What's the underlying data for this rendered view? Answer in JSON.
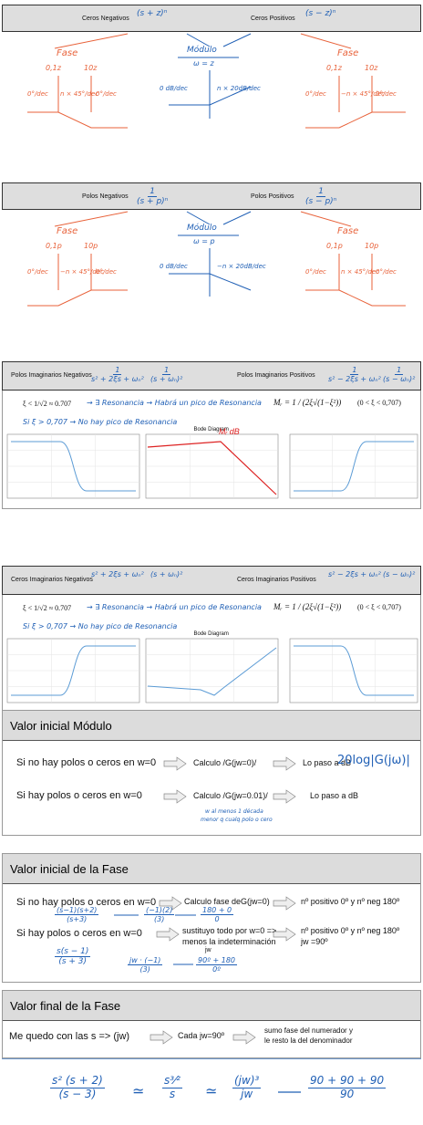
{
  "real_sections": [
    {
      "left_label": "Ceros Negativos",
      "left_expr": "(s + z)ⁿ",
      "right_label": "Ceros Positivos",
      "right_expr": "(s − z)ⁿ",
      "left_title": "Fase",
      "left_freqs": [
        "0,1z",
        "10z"
      ],
      "left_slopes": [
        "0°/dec",
        "n × 45°/dec",
        "0°/dec"
      ],
      "mid_title": "Módulo",
      "mid_freq": "ω = z",
      "mid_slopes": [
        "0 dB/dec",
        "n × 20dB/dec"
      ],
      "right_title": "Fase",
      "right_freqs": [
        "0,1z",
        "10z"
      ],
      "right_slopes": [
        "0°/dec",
        "−n × 45°/dec",
        "0°/dec"
      ]
    },
    {
      "left_label": "Polos Negativos",
      "left_expr": [
        "1",
        "(s + p)ⁿ"
      ],
      "right_label": "Polos Positivos",
      "right_expr": [
        "1",
        "(s − p)ⁿ"
      ],
      "left_title": "Fase",
      "left_freqs": [
        "0,1p",
        "10p"
      ],
      "left_slopes": [
        "0°/dec",
        "−n × 45°/dec",
        "0°/dec"
      ],
      "mid_title": "Módulo",
      "mid_freq": "ω = p",
      "mid_slopes": [
        "0 dB/dec",
        "−n × 20dB/dec"
      ],
      "right_title": "Fase",
      "right_freqs": [
        "0,1p",
        "10p"
      ],
      "right_slopes": [
        "0°/dec",
        "n × 45°/dec",
        "0°/dec"
      ]
    }
  ],
  "imag_sections": [
    {
      "left_label": "Polos Imaginarios Negativos",
      "left_expr": [
        "1",
        "s² + 2ξs + ωₙ²"
      ],
      "left_approx": [
        "1",
        "(s + ωₙ)²"
      ],
      "right_label": "Polos Imaginarios Positivos",
      "right_expr": [
        "1",
        "s² − 2ξs + ωₙ²"
      ],
      "right_approx": [
        "1",
        "(s − ωₙ)²"
      ],
      "cond1": "ξ < 1/√2 ≈ 0.707",
      "res1": "→ ∃ Resonancia → Habrá un pico de Resonancia",
      "formula": "Mᵣ = 1 / (2ξ√(1−ξ²))",
      "formula_range": "(0 < ξ < 0,707)",
      "cond2": "Si ξ > 0,707 → No hay pico de Resonancia",
      "plot_title": "Bode Diagram",
      "annotation": "Mᵣ dB"
    },
    {
      "left_label": "Ceros Imaginarios Negativos",
      "left_expr": "s² + 2ξs + ωₙ²",
      "left_approx": "(s + ωₙ)²",
      "right_label": "Ceros Imaginarios Positivos",
      "right_expr": "s² − 2ξs + ωₙ²",
      "right_approx": "(s − ωₙ)²",
      "cond1": "ξ < 1/√2 ≈ 0.707",
      "res1": "→ ∃ Resonancia → Habrá un pico de Resonancia",
      "formula": "Mᵣ = 1 / (2ξ√(1−ξ²))",
      "formula_range": "(0 < ξ < 0,707)",
      "cond2": "Si ξ > 0,707 → No hay pico de Resonancia",
      "plot_title": "Bode Diagram"
    }
  ],
  "modulo": {
    "title": "Valor inicial Módulo",
    "rows": [
      [
        "Si no hay polos o ceros en w=0",
        "Calculo /G(jw=0)/",
        "Lo paso a dB"
      ],
      [
        "Si hay polos o ceros en w=0",
        "Calculo /G(jw=0.01)/",
        "Lo paso a dB"
      ]
    ],
    "note": "20log|G(jω)|",
    "hand_note": [
      "w al menos 1 década",
      "menor q cualq polo o cero"
    ]
  },
  "fase_inicial": {
    "title": "Valor inicial de la Fase",
    "rows": [
      [
        "Si no hay polos o ceros en w=0",
        "Calculo fase deG(jw=0)",
        "nº positivo 0º y nº neg 180º"
      ],
      [
        "Si hay polos o ceros en w=0",
        "sustituyo todo por w=0 =>",
        "nº positivo 0º y nº neg 180º"
      ]
    ],
    "row2_extra": [
      "menos la indeterminación",
      "jw =90º",
      "jw"
    ],
    "ex1": [
      [
        "(s−1)(s+2)",
        "(s+3)"
      ],
      [
        "(−1)(2)",
        "(3)"
      ],
      [
        "180 + 0",
        "0"
      ]
    ],
    "ex2": [
      [
        "s(s − 1)",
        "(s + 3)"
      ],
      [
        "jw · (−1)",
        "(3)"
      ],
      [
        "90º + 180",
        "0º"
      ]
    ]
  },
  "fase_final": {
    "title": "Valor final de la Fase",
    "row": [
      "Me quedo con las s => (jw)",
      "Cada jw=90º",
      "sumo fase del numerador y",
      "le resto la del denominador"
    ],
    "eq": [
      [
        "s² (s + 2)",
        "(s − 3)"
      ],
      [
        "s³⁄²",
        "s"
      ],
      [
        "(jw)³",
        "jw"
      ],
      [
        "90 + 90 + 90",
        "90"
      ]
    ]
  }
}
